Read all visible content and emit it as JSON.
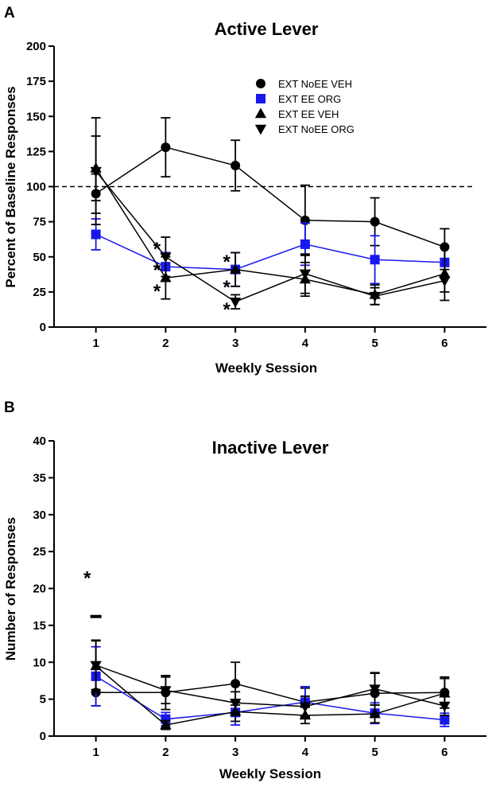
{
  "panels": {
    "a": "A",
    "b": "B"
  },
  "chart_data": [
    {
      "type": "line",
      "title": "Active Lever",
      "xlabel": "Weekly Session",
      "ylabel": "Percent of Baseline Responses",
      "xlim": [
        0.4,
        6.6
      ],
      "ylim": [
        0,
        200
      ],
      "categories": [
        "1",
        "2",
        "3",
        "4",
        "5",
        "6"
      ],
      "yticks": [
        "0",
        "25",
        "50",
        "75",
        "100",
        "125",
        "150",
        "175",
        "200"
      ],
      "reference_line": 100,
      "legend_position": "top-right",
      "series": [
        {
          "name": "EXT NoEE VEH",
          "marker": "circle",
          "color": "#000000",
          "x": [
            1,
            2,
            3,
            4,
            5,
            6
          ],
          "values": [
            95,
            128,
            115,
            76,
            75,
            57
          ],
          "error": [
            14,
            21,
            18,
            25,
            17,
            13
          ]
        },
        {
          "name": "EXT EE ORG",
          "marker": "square",
          "color": "#1818ee",
          "x": [
            1,
            2,
            3,
            4,
            5,
            6
          ],
          "values": [
            66,
            43,
            41,
            59,
            48,
            46
          ],
          "error": [
            11,
            10,
            12,
            15,
            17,
            11
          ]
        },
        {
          "name": "EXT EE VEH",
          "marker": "triangle-up",
          "color": "#000000",
          "x": [
            1,
            2,
            3,
            4,
            5,
            6
          ],
          "values": [
            113,
            35,
            41,
            34,
            23,
            38
          ],
          "error": [
            23,
            15,
            12,
            12,
            7,
            19
          ]
        },
        {
          "name": "EXT NoEE ORG",
          "marker": "triangle-down",
          "color": "#000000",
          "x": [
            1,
            2,
            3,
            4,
            5,
            6
          ],
          "values": [
            111,
            50,
            18,
            38,
            22,
            33
          ],
          "error": [
            38,
            14,
            5,
            14,
            6,
            8
          ]
        }
      ],
      "annotations": [
        {
          "text": "*",
          "x": 2,
          "y": 56
        },
        {
          "text": "*",
          "x": 2,
          "y": 41
        },
        {
          "text": "*",
          "x": 2,
          "y": 26
        },
        {
          "text": "*",
          "x": 3,
          "y": 47
        },
        {
          "text": "*",
          "x": 3,
          "y": 29
        },
        {
          "text": "*",
          "x": 3,
          "y": 13
        }
      ]
    },
    {
      "type": "line",
      "title": "Inactive Lever",
      "xlabel": "Weekly Session",
      "ylabel": "Number of Responses",
      "xlim": [
        0.4,
        6.6
      ],
      "ylim": [
        0,
        40
      ],
      "categories": [
        "1",
        "2",
        "3",
        "4",
        "5",
        "6"
      ],
      "yticks": [
        "0",
        "5",
        "10",
        "15",
        "20",
        "25",
        "30",
        "35",
        "40"
      ],
      "series": [
        {
          "name": "EXT NoEE VEH",
          "marker": "circle",
          "color": "#000000",
          "x": [
            1,
            2,
            3,
            4,
            5,
            6
          ],
          "values": [
            5.9,
            5.9,
            7.1,
            4.6,
            5.8,
            5.9
          ],
          "error": [
            1.8,
            2.3,
            2.9,
            1.9,
            2.7,
            2.1
          ]
        },
        {
          "name": "EXT EE ORG",
          "marker": "square",
          "color": "#1818ee",
          "x": [
            1,
            2,
            3,
            4,
            5,
            6
          ],
          "values": [
            8.1,
            2.3,
            3.2,
            4.6,
            3.1,
            2.2
          ],
          "error": [
            4.0,
            0.9,
            1.7,
            2.1,
            1.4,
            0.9
          ]
        },
        {
          "name": "EXT EE VEH",
          "marker": "triangle-up",
          "color": "#000000",
          "x": [
            1,
            2,
            3,
            4,
            5,
            6
          ],
          "values": [
            9.5,
            1.5,
            3.3,
            2.8,
            3.0,
            5.8
          ],
          "error": [
            3.5,
            0.6,
            1.3,
            1.1,
            1.2,
            2.0
          ]
        },
        {
          "name": "EXT NoEE ORG",
          "marker": "triangle-down",
          "color": "#000000",
          "x": [
            1,
            2,
            3,
            4,
            5,
            6
          ],
          "values": [
            9.6,
            6.2,
            4.5,
            4.0,
            6.4,
            4.1
          ],
          "error": [
            3.3,
            1.8,
            1.5,
            1.4,
            2.2,
            1.3
          ]
        }
      ],
      "annotations": [
        {
          "text": "*",
          "x": 1,
          "y": 21.5
        },
        {
          "text": "-",
          "x": 1,
          "y": 16.2
        }
      ]
    }
  ]
}
